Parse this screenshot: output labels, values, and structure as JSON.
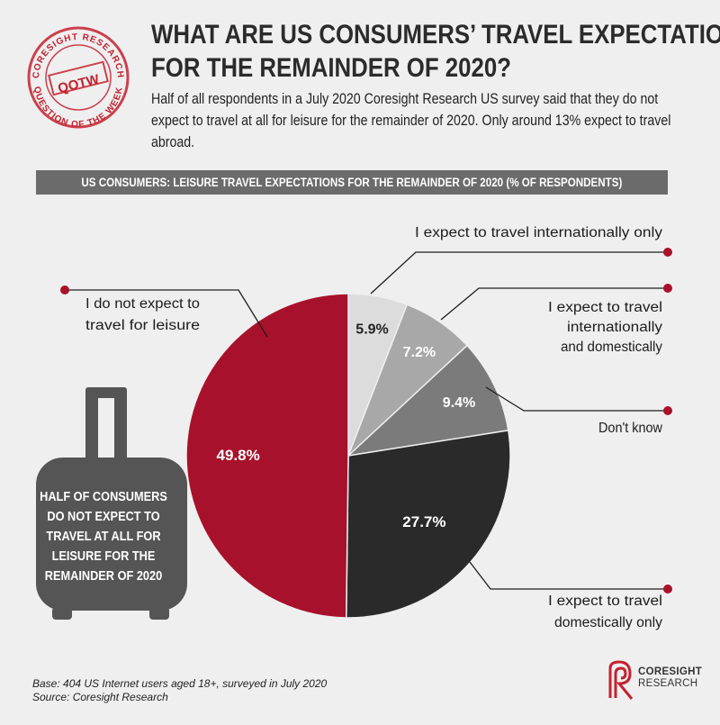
{
  "header": {
    "title_line1": "WHAT ARE US CONSUMERS’ TRAVEL EXPECTATIONS",
    "title_line2": "FOR THE REMAINDER OF 2020?",
    "intro": "Half of all respondents in a July 2020 Coresight Research US survey said that they do not expect to travel at all for leisure for the remainder of 2020. Only around 13% expect to travel abroad."
  },
  "stamp": {
    "brand": "CORESIGHT RESEARCH",
    "word": "QOTW",
    "caption": "QUESTION OF THE WEEK",
    "color": "#c4212f"
  },
  "chart_data": {
    "type": "pie",
    "title": "US CONSUMERS: LEISURE TRAVEL EXPECTATIONS FOR THE REMAINDER OF 2020 (% OF RESPONDENTS)",
    "unit": "%",
    "slices": [
      {
        "label": "I expect to travel internationally only",
        "value": 5.9,
        "display": "5.9%",
        "color": "#dcdcdc",
        "label_color": "#222222"
      },
      {
        "label": "I expect to travel internationally and domestically",
        "value": 7.2,
        "display": "7.2%",
        "color": "#a8a8a8",
        "label_color": "#ffffff"
      },
      {
        "label": "Don't know",
        "value": 9.4,
        "display": "9.4%",
        "color": "#7b7b7b",
        "label_color": "#ffffff"
      },
      {
        "label": "I expect to travel domestically only",
        "value": 27.7,
        "display": "27.7%",
        "color": "#2a2a2a",
        "label_color": "#ffffff"
      },
      {
        "label": "I do not expect to travel for leisure",
        "value": 49.8,
        "display": "49.8%",
        "color": "#a8112b",
        "label_color": "#ffffff"
      }
    ],
    "callouts": [
      {
        "lines": [
          "I expect to travel internationally only"
        ]
      },
      {
        "lines": [
          "I expect to travel",
          "internationally",
          "and domestically"
        ]
      },
      {
        "lines": [
          "Don't know"
        ]
      },
      {
        "lines": [
          "I expect to travel",
          "domestically only"
        ]
      },
      {
        "lines": [
          "I do not expect to",
          "travel for leisure"
        ]
      }
    ],
    "accent_color": "#a8112b"
  },
  "suitcase": {
    "text": "HALF OF CONSUMERS DO NOT EXPECT TO TRAVEL AT ALL FOR LEISURE FOR THE REMAINDER OF 2020",
    "color": "#555555"
  },
  "footnote": {
    "base": "Base: 404 US Internet users aged 18+, surveyed in July 2020",
    "source": "Source: Coresight Research"
  },
  "logo": {
    "line1": "CORESIGHT",
    "line2": "RESEARCH",
    "icon": "coresight-r-logo-icon"
  }
}
